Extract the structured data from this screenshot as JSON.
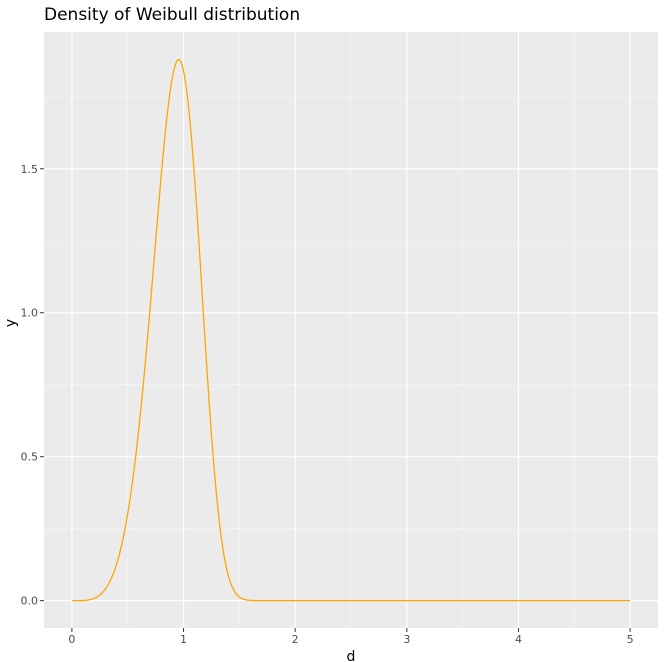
{
  "chart_data": {
    "type": "line",
    "title": "Density of Weibull distribution",
    "xlabel": "d",
    "ylabel": "y",
    "xlim": [
      -0.25,
      5.25
    ],
    "ylim": [
      -0.095,
      1.975
    ],
    "x_ticks": [
      0,
      1,
      2,
      3,
      4,
      5
    ],
    "y_ticks": [
      0.0,
      0.5,
      1.0,
      1.5
    ],
    "x_tick_labels": [
      "0",
      "1",
      "2",
      "3",
      "4",
      "5"
    ],
    "y_tick_labels": [
      "0.0",
      "0.5",
      "1.0",
      "1.5"
    ],
    "grid": true,
    "legend": "none",
    "series": [
      {
        "distribution": "weibull",
        "shape": 5,
        "scale": 1,
        "x_range": [
          0,
          5
        ],
        "points": 500,
        "color": "#FFA500"
      }
    ]
  },
  "colors": {
    "panel_background": "#EBEBEB",
    "grid_major": "#FFFFFF",
    "grid_minor": "#F5F5F5",
    "line": "#FFA500",
    "tick": "#333333",
    "tick_label": "#4D4D4D"
  }
}
